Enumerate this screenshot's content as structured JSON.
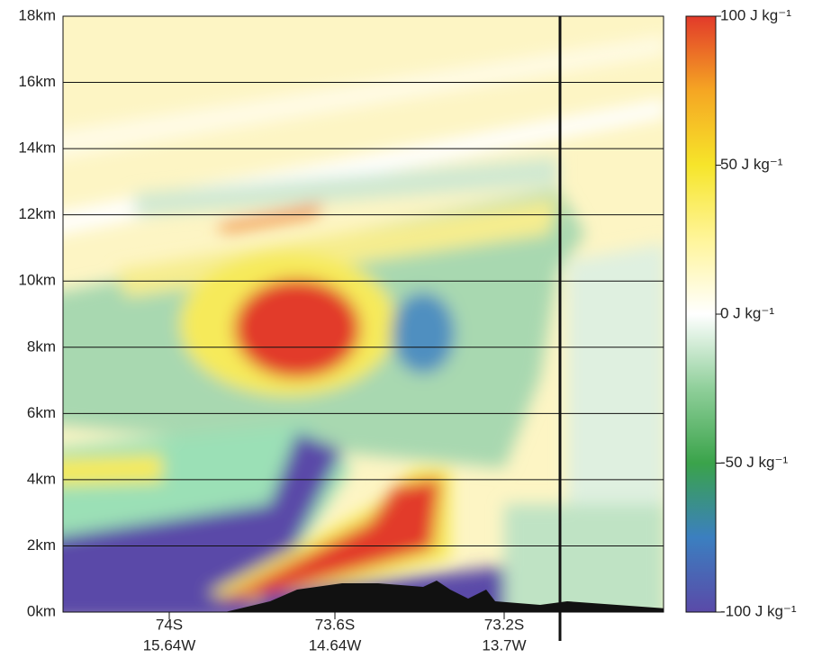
{
  "chart_data": {
    "type": "heatmap",
    "ylim": [
      0,
      18
    ],
    "yticks": [
      {
        "value": 0,
        "label": "0km"
      },
      {
        "value": 2,
        "label": "2km"
      },
      {
        "value": 4,
        "label": "4km"
      },
      {
        "value": 6,
        "label": "6km"
      },
      {
        "value": 8,
        "label": "8km"
      },
      {
        "value": 10,
        "label": "10km"
      },
      {
        "value": 12,
        "label": "12km"
      },
      {
        "value": 14,
        "label": "14km"
      },
      {
        "value": 16,
        "label": "16km"
      },
      {
        "value": 18,
        "label": "18km"
      }
    ],
    "grid": true,
    "x_labels": [
      {
        "lat": "74S",
        "lon": "15.64W"
      },
      {
        "lat": "73.6S",
        "lon": "14.64W"
      },
      {
        "lat": "73.2S",
        "lon": "13.7W"
      }
    ],
    "colorbar": {
      "lim": [
        -100,
        100
      ],
      "colors": [
        "#5a4aa8",
        "#3b7fc0",
        "#3aa34a",
        "#8fcf9a",
        "#ffffff",
        "#fff59a",
        "#f6e52a",
        "#f5a623",
        "#e23a2a"
      ],
      "ticks": [
        {
          "value": 100,
          "label": "100 J kg⁻¹"
        },
        {
          "value": 50,
          "label": "50 J kg⁻¹"
        },
        {
          "value": 0,
          "label": "0 J kg⁻¹"
        },
        {
          "value": -50,
          "label": "-50 J kg⁻¹"
        },
        {
          "value": -100,
          "label": "-100 J kg⁻¹"
        }
      ]
    }
  }
}
